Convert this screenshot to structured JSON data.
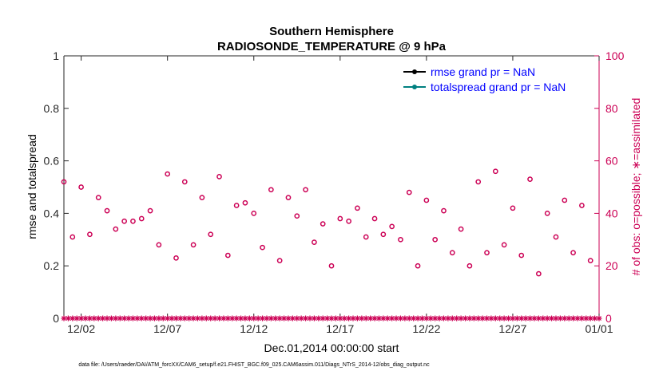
{
  "chart_data": {
    "type": "scatter",
    "title": "Southern Hemisphere",
    "subtitle": "RADIOSONDE_TEMPERATURE @ 9 hPa",
    "xlabel": "Dec.01,2014 00:00:00 start",
    "ylabel": "rmse and totalspread",
    "ylabel_right": "# of obs: o=possible; ∗=assimilated",
    "xlim": [
      0,
      31
    ],
    "ylim": [
      0,
      1
    ],
    "ylim_right": [
      0,
      100
    ],
    "x_ticks": [
      {
        "value": 1,
        "label": "12/02"
      },
      {
        "value": 6,
        "label": "12/07"
      },
      {
        "value": 11,
        "label": "12/12"
      },
      {
        "value": 16,
        "label": "12/17"
      },
      {
        "value": 21,
        "label": "12/22"
      },
      {
        "value": 26,
        "label": "12/27"
      },
      {
        "value": 31,
        "label": "01/01"
      }
    ],
    "y_ticks": [
      "0",
      "0.2",
      "0.4",
      "0.6",
      "0.8",
      "1"
    ],
    "y_ticks_right": [
      "0",
      "20",
      "40",
      "60",
      "80",
      "100"
    ],
    "legend": [
      {
        "label": "rmse grand pr = NaN",
        "color": "#000000"
      },
      {
        "label": "totalspread grand pr = NaN",
        "color": "#008080"
      }
    ],
    "legend_position": "top-right",
    "grid": false,
    "series": [
      {
        "name": "possible",
        "marker": "circle",
        "color": "#cc0055",
        "axis": "right",
        "x": [
          0,
          0.5,
          1,
          1.5,
          2,
          2.5,
          3,
          3.5,
          4,
          4.5,
          5,
          5.5,
          6,
          6.5,
          7,
          7.5,
          8,
          8.5,
          9,
          9.5,
          10,
          10.5,
          11,
          11.5,
          12,
          12.5,
          13,
          13.5,
          14,
          14.5,
          15,
          15.5,
          16,
          16.5,
          17,
          17.5,
          18,
          18.5,
          19,
          19.5,
          20,
          20.5,
          21,
          21.5,
          22,
          22.5,
          23,
          23.5,
          24,
          24.5,
          25,
          25.5,
          26,
          26.5,
          27,
          27.5,
          28,
          28.5,
          29,
          29.5,
          30,
          30.5
        ],
        "values": [
          52,
          31,
          50,
          32,
          46,
          41,
          34,
          37,
          37,
          38,
          41,
          28,
          55,
          23,
          52,
          28,
          46,
          32,
          54,
          24,
          43,
          44,
          40,
          27,
          49,
          22,
          46,
          39,
          49,
          29,
          36,
          20,
          38,
          37,
          42,
          31,
          38,
          32,
          35,
          30,
          48,
          20,
          45,
          30,
          41,
          25,
          34,
          20,
          52,
          25,
          56,
          28,
          42,
          24,
          53,
          17,
          40,
          31,
          45,
          25,
          43,
          22
        ]
      },
      {
        "name": "assimilated",
        "marker": "star",
        "color": "#cc0055",
        "axis": "right",
        "x_range": [
          0,
          31
        ],
        "step": 0.25,
        "constant_value": 0
      }
    ]
  },
  "footer": "data file: /Users/raeder/DAI/ATM_forcXX/CAM6_setup/f.e21.FHIST_BGC.f09_025.CAM6assim.011/Diags_NTrS_2014-12/obs_diag_output.nc"
}
